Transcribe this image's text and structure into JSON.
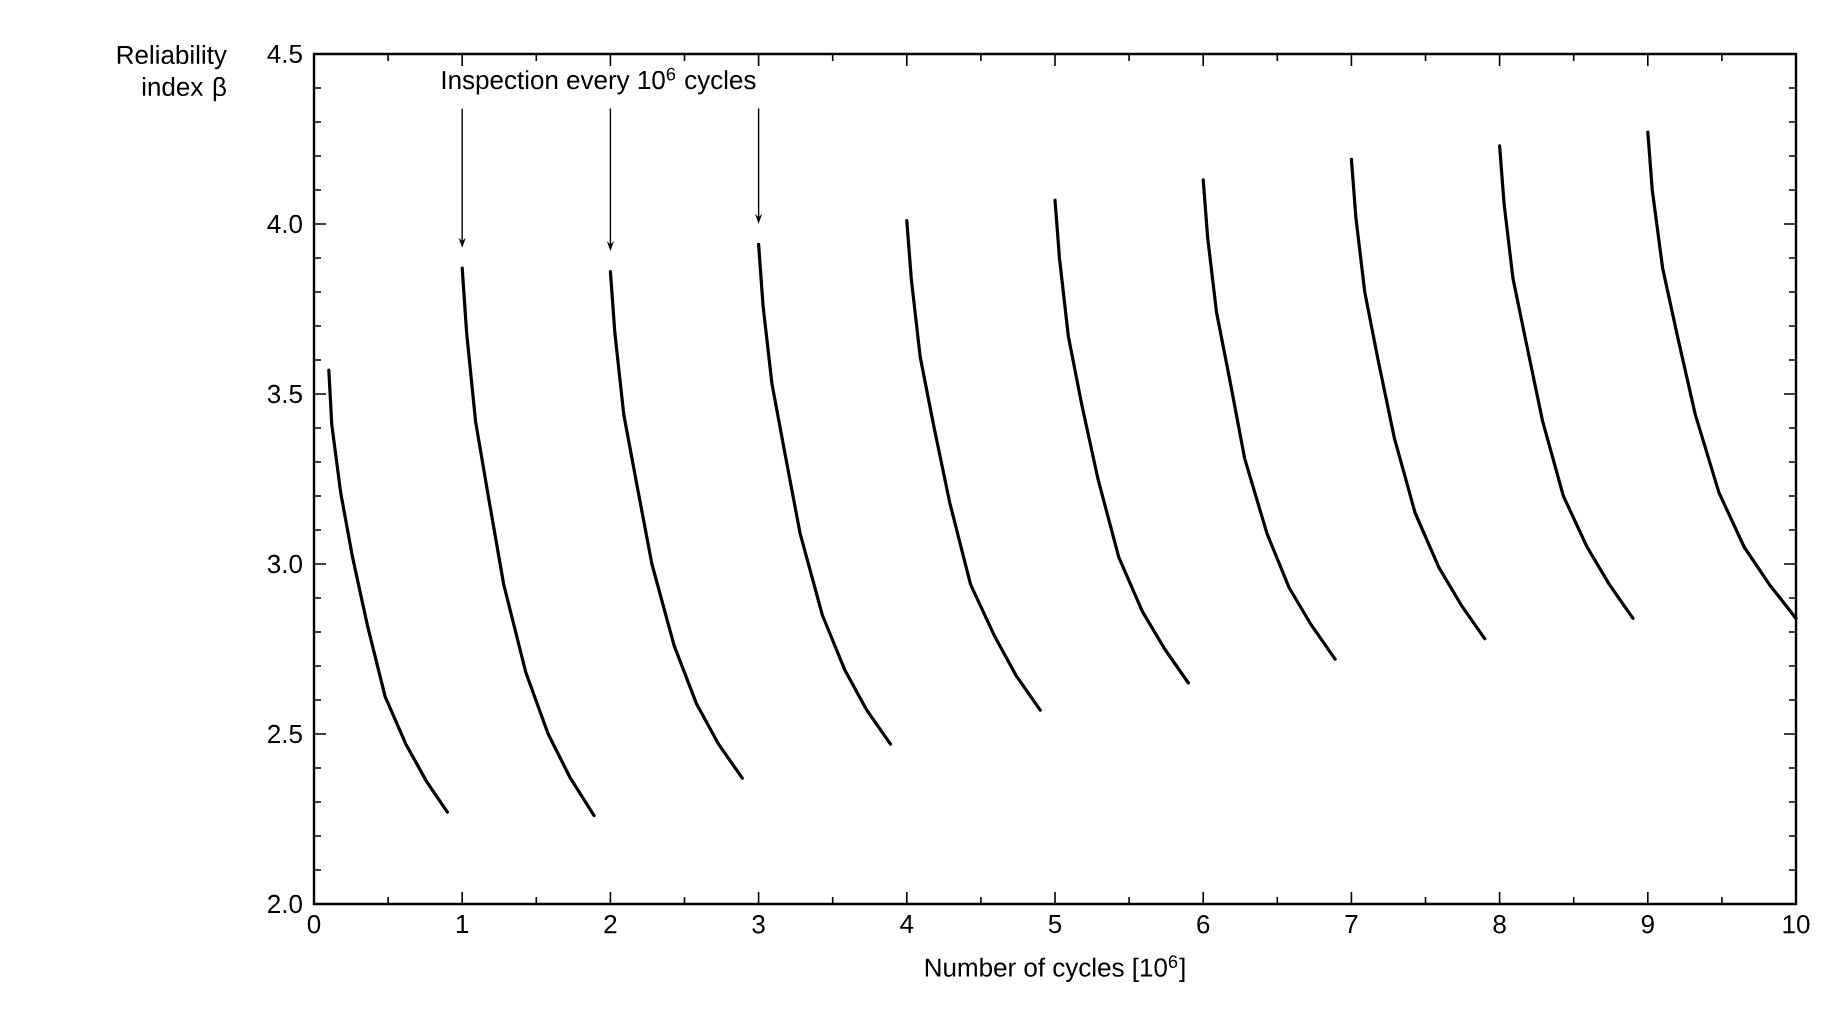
{
  "chart_data": {
    "type": "line",
    "xlabel": "Number of cycles [10$^{6}$]",
    "ylabel": "Reliability index β",
    "annotations": [
      "Inspection every 10$^{6}$ cycles"
    ],
    "xlim": [
      0,
      10
    ],
    "ylim": [
      2.0,
      4.5
    ],
    "xticks": [
      0,
      1,
      2,
      3,
      4,
      5,
      6,
      7,
      8,
      9,
      10
    ],
    "yticks": [
      {
        "value": 2.0,
        "label": "2.0"
      },
      {
        "value": 2.5,
        "label": "2.5"
      },
      {
        "value": 3.0,
        "label": "3.0"
      },
      {
        "value": 3.5,
        "label": "3.5"
      },
      {
        "value": 4.0,
        "label": "4.0"
      },
      {
        "value": 4.5,
        "label": "4.5"
      }
    ],
    "marker": "none",
    "line_style": "solid",
    "series": [
      {
        "color": "#000000",
        "x": [
          0.1,
          0.12,
          0.18,
          0.26,
          0.36,
          0.48,
          0.62,
          0.76,
          0.9
        ],
        "values": [
          3.57,
          3.41,
          3.21,
          3.02,
          2.82,
          2.61,
          2.47,
          2.36,
          2.27
        ]
      },
      {
        "color": "#000000",
        "x": [
          1.0,
          1.03,
          1.09,
          1.18,
          1.28,
          1.43,
          1.58,
          1.73,
          1.89
        ],
        "values": [
          3.87,
          3.68,
          3.42,
          3.19,
          2.94,
          2.68,
          2.5,
          2.37,
          2.26
        ]
      },
      {
        "color": "#000000",
        "x": [
          2.0,
          2.03,
          2.09,
          2.18,
          2.28,
          2.43,
          2.58,
          2.73,
          2.89
        ],
        "values": [
          3.86,
          3.68,
          3.44,
          3.23,
          3.0,
          2.76,
          2.59,
          2.47,
          2.37
        ]
      },
      {
        "color": "#000000",
        "x": [
          3.0,
          3.03,
          3.09,
          3.18,
          3.28,
          3.43,
          3.58,
          3.73,
          3.89
        ],
        "values": [
          3.94,
          3.76,
          3.53,
          3.32,
          3.09,
          2.85,
          2.69,
          2.57,
          2.47
        ]
      },
      {
        "color": "#000000",
        "x": [
          4.0,
          4.03,
          4.09,
          4.18,
          4.29,
          4.43,
          4.59,
          4.74,
          4.9
        ],
        "values": [
          4.01,
          3.84,
          3.61,
          3.41,
          3.18,
          2.94,
          2.79,
          2.67,
          2.57
        ]
      },
      {
        "color": "#000000",
        "x": [
          5.0,
          5.03,
          5.09,
          5.18,
          5.29,
          5.43,
          5.59,
          5.74,
          5.9
        ],
        "values": [
          4.07,
          3.9,
          3.67,
          3.47,
          3.25,
          3.02,
          2.86,
          2.75,
          2.65
        ]
      },
      {
        "color": "#000000",
        "x": [
          6.0,
          6.03,
          6.09,
          6.18,
          6.28,
          6.43,
          6.58,
          6.73,
          6.89
        ],
        "values": [
          4.13,
          3.96,
          3.74,
          3.54,
          3.31,
          3.09,
          2.93,
          2.82,
          2.72
        ]
      },
      {
        "color": "#000000",
        "x": [
          7.0,
          7.03,
          7.09,
          7.18,
          7.29,
          7.43,
          7.59,
          7.74,
          7.9
        ],
        "values": [
          4.19,
          4.02,
          3.8,
          3.6,
          3.37,
          3.15,
          2.99,
          2.88,
          2.78
        ]
      },
      {
        "color": "#000000",
        "x": [
          8.0,
          8.03,
          8.09,
          8.18,
          8.29,
          8.43,
          8.59,
          8.74,
          8.9
        ],
        "values": [
          4.23,
          4.06,
          3.84,
          3.65,
          3.42,
          3.2,
          3.05,
          2.94,
          2.84
        ]
      },
      {
        "color": "#000000",
        "x": [
          9.0,
          9.03,
          9.1,
          9.2,
          9.32,
          9.48,
          9.65,
          9.82,
          10
        ],
        "values": [
          4.27,
          4.1,
          3.87,
          3.67,
          3.44,
          3.21,
          3.05,
          2.94,
          2.84
        ]
      }
    ]
  }
}
